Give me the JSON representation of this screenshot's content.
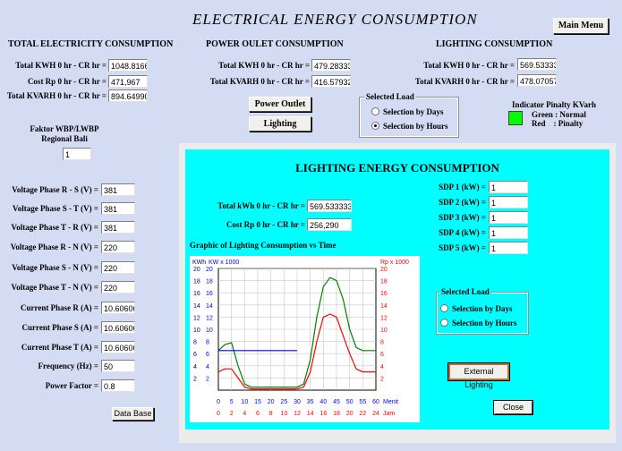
{
  "title": "ELECTRICAL   ENERGY CONSUMPTION",
  "main_menu_label": "Main Menu",
  "total": {
    "heading": "TOTAL ELECTRICITY CONSUMPTION",
    "kwh_label": "Total KWH 0 hr - CR hr =",
    "kwh_value": "1048.8166",
    "cost_label": "Cost Rp 0 hr - CR hr =",
    "cost_value": "471,967",
    "kvarh_label": "Total KVARH 0 hr - CR hr =",
    "kvarh_value": "894.64990"
  },
  "power_outlet": {
    "heading": "POWER OULET CONSUMPTION",
    "kwh_label": "Total KWH 0 hr - CR hr =",
    "kwh_value": "479.28333",
    "kvarh_label": "Total KVARH 0 hr - CR hr =",
    "kvarh_value": "416.57932"
  },
  "lighting": {
    "heading": "LIGHTING CONSUMPTION",
    "kwh_label": "Total KWH 0 hr - CR hr =",
    "kwh_value": "569.53333",
    "kvarh_label": "Total KVARH 0 hr - CR hr =",
    "kvarh_value": "478.07057"
  },
  "buttons": {
    "power_outlet": "Power Outlet",
    "lighting": "Lighting",
    "database": "Data Base"
  },
  "selected_load": {
    "legend": "Selected Load",
    "days": "Selection by Days",
    "hours": "Selection by Hours"
  },
  "indicator": {
    "title": "Indicator Pinalty KVarh",
    "green": "Green : Normal",
    "red": "Red    : Pinalty",
    "color": "#00ff00"
  },
  "faktor": {
    "line1": "Faktor WBP/LWBP",
    "line2": "Regional Bali",
    "value": "1"
  },
  "measurements": [
    {
      "label": "Voltage Phase R - S (V) =",
      "value": "381"
    },
    {
      "label": "Voltage Phase S - T (V) =",
      "value": "381"
    },
    {
      "label": "Voltage Phase T - R (V) =",
      "value": "381"
    },
    {
      "label": "Voltage Phase R - N (V) =",
      "value": "220"
    },
    {
      "label": "Voltage Phase S - N (V) =",
      "value": "220"
    },
    {
      "label": "Voltage Phase T - N (V) =",
      "value": "220"
    },
    {
      "label": "Current Phase R (A) =",
      "value": "10.606060"
    },
    {
      "label": "Current Phase S (A) =",
      "value": "10.606060"
    },
    {
      "label": "Current Phase T (A) =",
      "value": "10.606060"
    },
    {
      "label": "Frequency (Hz) =",
      "value": "50"
    },
    {
      "label": "Power Factor =",
      "value": "0.8"
    }
  ],
  "popup": {
    "title": "LIGHTING ENERGY CONSUMPTION",
    "kwh_label": "Total kWh 0 hr - CR hr =",
    "kwh_value": "569.5333333",
    "cost_label": "Cost Rp 0 hr - CR hr =",
    "cost_value": "256,290",
    "graph_title": "Graphic of Lighting Consumption vs Time",
    "sdp": [
      {
        "label": "SDP 1 (kW) =",
        "value": "1"
      },
      {
        "label": "SDP 2 (kW) =",
        "value": "1"
      },
      {
        "label": "SDP 3 (kW) =",
        "value": "1"
      },
      {
        "label": "SDP 4 (kW) =",
        "value": "1"
      },
      {
        "label": "SDP 5 (kW) =",
        "value": "1"
      }
    ],
    "selected_load": {
      "legend": "Selected Load",
      "days": "Selection by Days",
      "hours": "Selection by Hours"
    },
    "external_lighting": "External Lighting",
    "close": "Close"
  },
  "chart_data": {
    "type": "line",
    "title": "",
    "y_label_left_1": "KWh",
    "y_label_left_2": "KW x 1000",
    "y_label_right": "Rp x 1000",
    "x_label_minutes": "Menit",
    "x_label_hours": "Jam",
    "ylim": [
      0,
      20
    ],
    "y_ticks": [
      2,
      4,
      6,
      8,
      10,
      12,
      14,
      16,
      18,
      20
    ],
    "x_ticks_minutes": [
      0,
      5,
      10,
      15,
      20,
      25,
      30,
      35,
      40,
      45,
      50,
      55,
      60
    ],
    "x_ticks_hours": [
      0,
      2,
      4,
      6,
      8,
      10,
      12,
      14,
      16,
      18,
      20,
      22,
      24
    ],
    "series": [
      {
        "color": "#008000",
        "x": [
          0,
          1,
          2,
          3,
          4,
          5,
          6,
          7,
          8,
          9,
          10,
          11,
          12,
          13,
          14,
          15,
          16,
          17,
          18,
          19,
          20,
          21,
          22,
          23,
          24
        ],
        "y": [
          6.5,
          7.5,
          7.8,
          4,
          1,
          0.5,
          0.5,
          0.5,
          0.5,
          0.5,
          0.5,
          0.5,
          0.5,
          1,
          5,
          12,
          17,
          18.5,
          18,
          15,
          10,
          7,
          6.5,
          6.5,
          6.5
        ]
      },
      {
        "color": "#ff0000",
        "x": [
          0,
          1,
          2,
          3,
          4,
          5,
          6,
          7,
          8,
          9,
          10,
          11,
          12,
          13,
          14,
          15,
          16,
          17,
          18,
          19,
          20,
          21,
          22,
          23,
          24
        ],
        "y": [
          3,
          3.5,
          3.5,
          2,
          0.5,
          0.2,
          0.2,
          0.2,
          0.2,
          0.2,
          0.2,
          0.2,
          0.2,
          0.5,
          3,
          8,
          12,
          12.5,
          12,
          9,
          6,
          3.5,
          3,
          3,
          3
        ]
      },
      {
        "color": "#0000ff",
        "x": [
          0,
          12
        ],
        "y": [
          6.5,
          6.5
        ]
      }
    ]
  }
}
